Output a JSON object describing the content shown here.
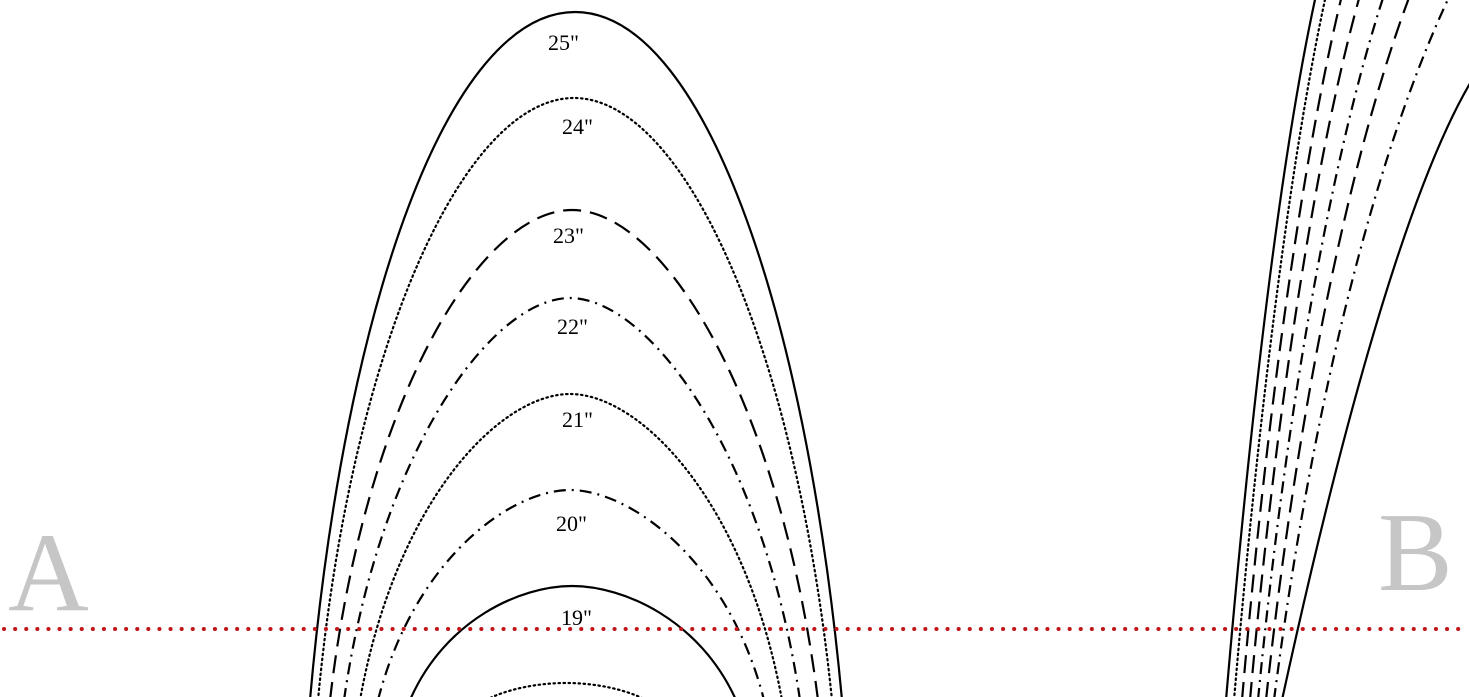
{
  "labels": {
    "corner_left": "A",
    "corner_right": "B"
  },
  "sizes": [
    {
      "label": "25\"",
      "style": "solid"
    },
    {
      "label": "24\"",
      "style": "dotted"
    },
    {
      "label": "23\"",
      "style": "dashed"
    },
    {
      "label": "22\"",
      "style": "dashdot"
    },
    {
      "label": "21\"",
      "style": "dotted"
    },
    {
      "label": "20\"",
      "style": "dashdot"
    },
    {
      "label": "19\"",
      "style": "solid"
    },
    {
      "label": "",
      "style": "dotted"
    }
  ],
  "colors": {
    "line": "#000000",
    "cut_line": "#c0161a",
    "corner_label": "#c6c6c6"
  }
}
